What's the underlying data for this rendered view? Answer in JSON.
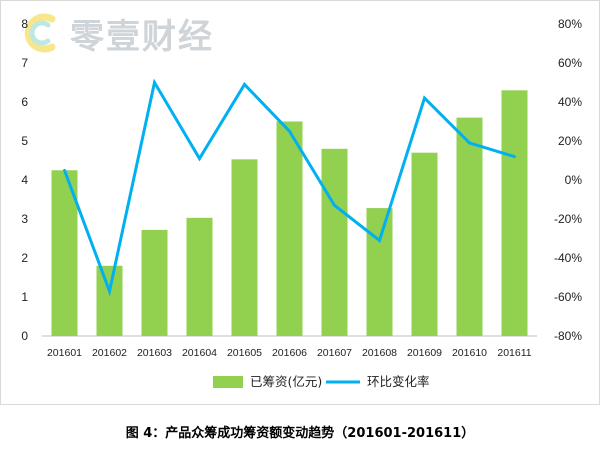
{
  "watermark": {
    "text": "零壹财经"
  },
  "caption": "图 4：产品众筹成功筹资额变动趋势（201601-201611）",
  "chart_data": {
    "type": "bar",
    "categories": [
      "201601",
      "201602",
      "201603",
      "201604",
      "201605",
      "201606",
      "201607",
      "201608",
      "201609",
      "201610",
      "201611"
    ],
    "series": [
      {
        "name": "已筹资(亿元)",
        "type": "bar",
        "axis": "left",
        "color": "#92d050",
        "values": [
          4.25,
          1.8,
          2.72,
          3.03,
          4.53,
          5.5,
          4.8,
          3.28,
          4.7,
          5.6,
          6.3
        ]
      },
      {
        "name": "环比变化率",
        "type": "line",
        "axis": "right",
        "color": "#00b0f0",
        "unit": "%",
        "values": [
          5,
          -57,
          50,
          11,
          49,
          25,
          -13,
          -31,
          42,
          19,
          12
        ]
      }
    ],
    "y_left": {
      "min": 0,
      "max": 8,
      "ticks": [
        "0",
        "1",
        "2",
        "3",
        "4",
        "5",
        "6",
        "7",
        "8"
      ]
    },
    "y_right": {
      "min": -80,
      "max": 80,
      "ticks": [
        "-80%",
        "-60%",
        "-40%",
        "-20%",
        "0%",
        "20%",
        "40%",
        "60%",
        "80%"
      ]
    },
    "grid": false,
    "legend_position": "bottom"
  }
}
